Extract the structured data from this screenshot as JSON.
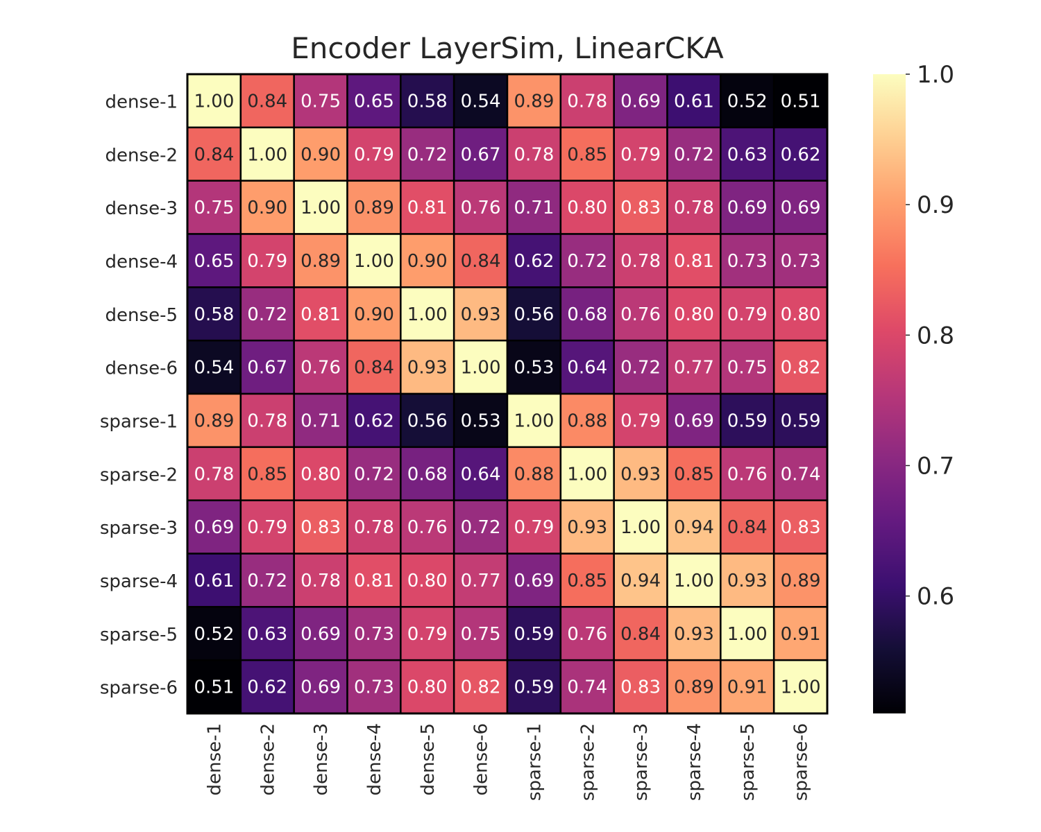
{
  "chart_data": {
    "type": "heatmap",
    "title": "Encoder LayerSim, LinearCKA",
    "rows": [
      "dense-1",
      "dense-2",
      "dense-3",
      "dense-4",
      "dense-5",
      "dense-6",
      "sparse-1",
      "sparse-2",
      "sparse-3",
      "sparse-4",
      "sparse-5",
      "sparse-6"
    ],
    "columns": [
      "dense-1",
      "dense-2",
      "dense-3",
      "dense-4",
      "dense-5",
      "dense-6",
      "sparse-1",
      "sparse-2",
      "sparse-3",
      "sparse-4",
      "sparse-5",
      "sparse-6"
    ],
    "values": [
      [
        1.0,
        0.84,
        0.75,
        0.65,
        0.58,
        0.54,
        0.89,
        0.78,
        0.69,
        0.61,
        0.52,
        0.51
      ],
      [
        0.84,
        1.0,
        0.9,
        0.79,
        0.72,
        0.67,
        0.78,
        0.85,
        0.79,
        0.72,
        0.63,
        0.62
      ],
      [
        0.75,
        0.9,
        1.0,
        0.89,
        0.81,
        0.76,
        0.71,
        0.8,
        0.83,
        0.78,
        0.69,
        0.69
      ],
      [
        0.65,
        0.79,
        0.89,
        1.0,
        0.9,
        0.84,
        0.62,
        0.72,
        0.78,
        0.81,
        0.73,
        0.73
      ],
      [
        0.58,
        0.72,
        0.81,
        0.9,
        1.0,
        0.93,
        0.56,
        0.68,
        0.76,
        0.8,
        0.79,
        0.8
      ],
      [
        0.54,
        0.67,
        0.76,
        0.84,
        0.93,
        1.0,
        0.53,
        0.64,
        0.72,
        0.77,
        0.75,
        0.82
      ],
      [
        0.89,
        0.78,
        0.71,
        0.62,
        0.56,
        0.53,
        1.0,
        0.88,
        0.79,
        0.69,
        0.59,
        0.59
      ],
      [
        0.78,
        0.85,
        0.8,
        0.72,
        0.68,
        0.64,
        0.88,
        1.0,
        0.93,
        0.85,
        0.76,
        0.74
      ],
      [
        0.69,
        0.79,
        0.83,
        0.78,
        0.76,
        0.72,
        0.79,
        0.93,
        1.0,
        0.94,
        0.84,
        0.83
      ],
      [
        0.61,
        0.72,
        0.78,
        0.81,
        0.8,
        0.77,
        0.69,
        0.85,
        0.94,
        1.0,
        0.93,
        0.89
      ],
      [
        0.52,
        0.63,
        0.69,
        0.73,
        0.79,
        0.75,
        0.59,
        0.76,
        0.84,
        0.93,
        1.0,
        0.91
      ],
      [
        0.51,
        0.62,
        0.69,
        0.73,
        0.8,
        0.82,
        0.59,
        0.74,
        0.83,
        0.89,
        0.91,
        1.0
      ]
    ],
    "colormap": "magma",
    "color_range": [
      0.51,
      1.0
    ],
    "colorbar_ticks": [
      "0.6",
      "0.7",
      "0.8",
      "0.9",
      "1.0"
    ],
    "colorbar_tick_values": [
      0.6,
      0.7,
      0.8,
      0.9,
      1.0
    ],
    "cell_border_color": "#000000"
  }
}
